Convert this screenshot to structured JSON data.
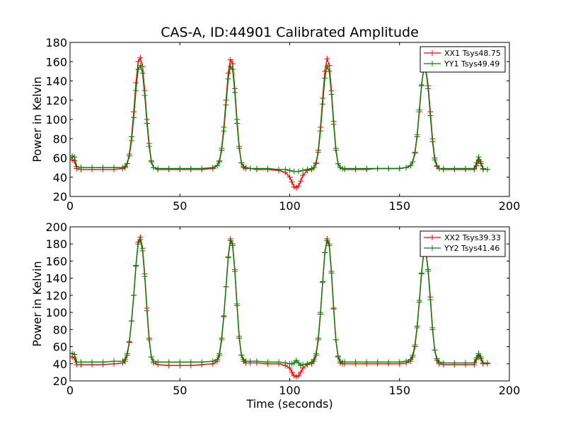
{
  "chart_data": [
    {
      "type": "line",
      "title": "CAS-A, ID:44901 Calibrated Amplitude",
      "xlabel": "",
      "ylabel": "Power in Kelvin",
      "xlim": [
        0,
        200
      ],
      "ylim": [
        20,
        180
      ],
      "xticks": [
        0,
        50,
        100,
        150,
        200
      ],
      "yticks": [
        20,
        40,
        60,
        80,
        100,
        120,
        140,
        160,
        180
      ],
      "grid": false,
      "legend_position": "top-right",
      "series": [
        {
          "name": "XX1 Tsys48.75",
          "color": "#ff0000",
          "marker": "plus",
          "x": [
            0,
            1,
            2,
            3,
            5,
            10,
            15,
            20,
            24,
            25,
            26,
            27,
            28,
            29,
            30,
            31,
            32,
            33,
            34,
            35,
            36,
            37,
            38,
            40,
            45,
            50,
            55,
            60,
            65,
            67,
            68,
            69,
            70,
            71,
            72,
            73,
            74,
            75,
            76,
            77,
            78,
            79,
            80,
            82,
            85,
            90,
            95,
            98,
            100,
            101,
            102,
            103,
            104,
            105,
            106,
            108,
            110,
            111,
            112,
            113,
            114,
            115,
            116,
            117,
            118,
            119,
            120,
            121,
            122,
            123,
            124,
            125,
            130,
            135,
            140,
            145,
            150,
            153,
            155,
            156,
            157,
            158,
            159,
            160,
            161,
            162,
            163,
            164,
            165,
            166,
            167,
            168,
            170,
            175,
            180,
            184,
            185,
            186,
            187,
            188,
            190
          ],
          "values": [
            58,
            58,
            57,
            49,
            48,
            48,
            48,
            48,
            49,
            50,
            54,
            64,
            82,
            108,
            138,
            160,
            164,
            155,
            130,
            100,
            75,
            57,
            50,
            48,
            48,
            48,
            48,
            48,
            49,
            52,
            57,
            70,
            92,
            120,
            148,
            162,
            158,
            132,
            100,
            72,
            55,
            50,
            49,
            49,
            48,
            48,
            47,
            45,
            40,
            35,
            30,
            29,
            31,
            36,
            42,
            47,
            48,
            50,
            55,
            68,
            92,
            122,
            150,
            163,
            156,
            130,
            98,
            70,
            54,
            50,
            49,
            48,
            48,
            48,
            49,
            49,
            49,
            50,
            52,
            56,
            65,
            82,
            108,
            135,
            153,
            152,
            135,
            108,
            80,
            60,
            52,
            49,
            48,
            48,
            48,
            48,
            52,
            58,
            54,
            48,
            48
          ]
        },
        {
          "name": "YY1 Tsys49.49",
          "color": "#008000",
          "marker": "plus",
          "x": [
            0,
            1,
            2,
            3,
            5,
            10,
            15,
            20,
            24,
            25,
            26,
            27,
            28,
            29,
            30,
            31,
            32,
            33,
            34,
            35,
            36,
            37,
            38,
            40,
            45,
            50,
            55,
            60,
            65,
            67,
            68,
            69,
            70,
            71,
            72,
            73,
            74,
            75,
            76,
            77,
            78,
            79,
            80,
            82,
            85,
            90,
            95,
            98,
            100,
            102,
            104,
            106,
            108,
            110,
            111,
            112,
            113,
            114,
            115,
            116,
            117,
            118,
            119,
            120,
            121,
            122,
            123,
            124,
            125,
            130,
            135,
            140,
            145,
            150,
            153,
            155,
            156,
            157,
            158,
            159,
            160,
            161,
            162,
            163,
            164,
            165,
            166,
            167,
            168,
            170,
            175,
            180,
            184,
            185,
            186,
            187,
            188,
            190
          ],
          "values": [
            62,
            62,
            61,
            51,
            50,
            50,
            50,
            50,
            50,
            51,
            54,
            62,
            78,
            102,
            130,
            152,
            156,
            148,
            125,
            96,
            72,
            56,
            50,
            49,
            49,
            49,
            49,
            49,
            50,
            52,
            56,
            68,
            88,
            115,
            142,
            155,
            152,
            128,
            96,
            70,
            55,
            51,
            50,
            49,
            49,
            49,
            48,
            48,
            47,
            46,
            46,
            47,
            48,
            49,
            50,
            54,
            66,
            88,
            116,
            143,
            155,
            150,
            126,
            95,
            68,
            54,
            50,
            49,
            49,
            49,
            49,
            49,
            49,
            49,
            50,
            52,
            56,
            66,
            84,
            110,
            136,
            152,
            150,
            132,
            104,
            77,
            58,
            51,
            49,
            49,
            49,
            49,
            49,
            55,
            61,
            56,
            49,
            48
          ]
        }
      ]
    },
    {
      "type": "line",
      "title": "",
      "xlabel": "Time (seconds)",
      "ylabel": "Power in Kelvin",
      "xlim": [
        0,
        200
      ],
      "ylim": [
        20,
        200
      ],
      "xticks": [
        0,
        50,
        100,
        150,
        200
      ],
      "yticks": [
        20,
        40,
        60,
        80,
        100,
        120,
        140,
        160,
        180,
        200
      ],
      "grid": false,
      "legend_position": "top-right",
      "series": [
        {
          "name": "XX2 Tsys39.33",
          "color": "#ff0000",
          "marker": "plus",
          "x": [
            0,
            1,
            2,
            3,
            5,
            10,
            15,
            20,
            24,
            25,
            26,
            27,
            28,
            29,
            30,
            31,
            32,
            33,
            34,
            35,
            36,
            37,
            38,
            40,
            45,
            50,
            55,
            60,
            65,
            67,
            68,
            69,
            70,
            71,
            72,
            73,
            74,
            75,
            76,
            77,
            78,
            79,
            80,
            82,
            85,
            90,
            95,
            98,
            100,
            101,
            102,
            103,
            104,
            105,
            106,
            108,
            110,
            111,
            112,
            113,
            114,
            115,
            116,
            117,
            118,
            119,
            120,
            121,
            122,
            123,
            124,
            125,
            130,
            135,
            140,
            145,
            150,
            153,
            155,
            156,
            157,
            158,
            159,
            160,
            161,
            162,
            163,
            164,
            165,
            166,
            167,
            168,
            170,
            175,
            180,
            184,
            185,
            186,
            187,
            188,
            190
          ],
          "values": [
            48,
            48,
            47,
            39,
            39,
            39,
            39,
            40,
            41,
            43,
            50,
            65,
            90,
            120,
            155,
            182,
            188,
            175,
            145,
            105,
            70,
            48,
            41,
            39,
            38,
            38,
            38,
            39,
            40,
            43,
            50,
            68,
            95,
            130,
            165,
            186,
            180,
            150,
            110,
            72,
            50,
            43,
            41,
            41,
            41,
            40,
            40,
            38,
            35,
            30,
            26,
            25,
            26,
            30,
            35,
            39,
            40,
            43,
            50,
            68,
            98,
            135,
            170,
            186,
            180,
            148,
            105,
            68,
            48,
            41,
            40,
            40,
            40,
            40,
            40,
            40,
            40,
            41,
            43,
            48,
            60,
            82,
            112,
            145,
            170,
            172,
            150,
            118,
            82,
            56,
            44,
            40,
            39,
            39,
            39,
            39,
            45,
            50,
            46,
            40,
            40
          ]
        },
        {
          "name": "YY2 Tsys41.46",
          "color": "#008000",
          "marker": "plus",
          "x": [
            0,
            1,
            2,
            3,
            5,
            10,
            15,
            20,
            24,
            25,
            26,
            27,
            28,
            29,
            30,
            31,
            32,
            33,
            34,
            35,
            36,
            37,
            38,
            40,
            45,
            50,
            55,
            60,
            65,
            67,
            68,
            69,
            70,
            71,
            72,
            73,
            74,
            75,
            76,
            77,
            78,
            79,
            80,
            82,
            85,
            90,
            95,
            98,
            100,
            101,
            102,
            103,
            104,
            105,
            106,
            108,
            110,
            111,
            112,
            113,
            114,
            115,
            116,
            117,
            118,
            119,
            120,
            121,
            122,
            123,
            124,
            125,
            130,
            135,
            140,
            145,
            150,
            153,
            155,
            156,
            157,
            158,
            159,
            160,
            161,
            162,
            163,
            164,
            165,
            166,
            167,
            168,
            170,
            175,
            180,
            184,
            185,
            186,
            187,
            188,
            190
          ],
          "values": [
            52,
            52,
            51,
            42,
            42,
            42,
            42,
            43,
            43,
            45,
            52,
            66,
            90,
            120,
            154,
            180,
            185,
            172,
            142,
            102,
            68,
            48,
            43,
            42,
            42,
            42,
            42,
            42,
            43,
            45,
            52,
            70,
            96,
            130,
            164,
            184,
            178,
            148,
            108,
            70,
            50,
            45,
            43,
            43,
            43,
            42,
            42,
            41,
            40,
            40,
            41,
            44,
            41,
            38,
            39,
            40,
            42,
            45,
            52,
            70,
            100,
            136,
            170,
            184,
            178,
            146,
            104,
            68,
            49,
            43,
            42,
            42,
            42,
            42,
            42,
            42,
            42,
            43,
            45,
            50,
            62,
            84,
            114,
            146,
            170,
            171,
            148,
            115,
            80,
            56,
            46,
            42,
            41,
            41,
            41,
            41,
            47,
            52,
            48,
            41,
            41
          ]
        }
      ]
    }
  ]
}
